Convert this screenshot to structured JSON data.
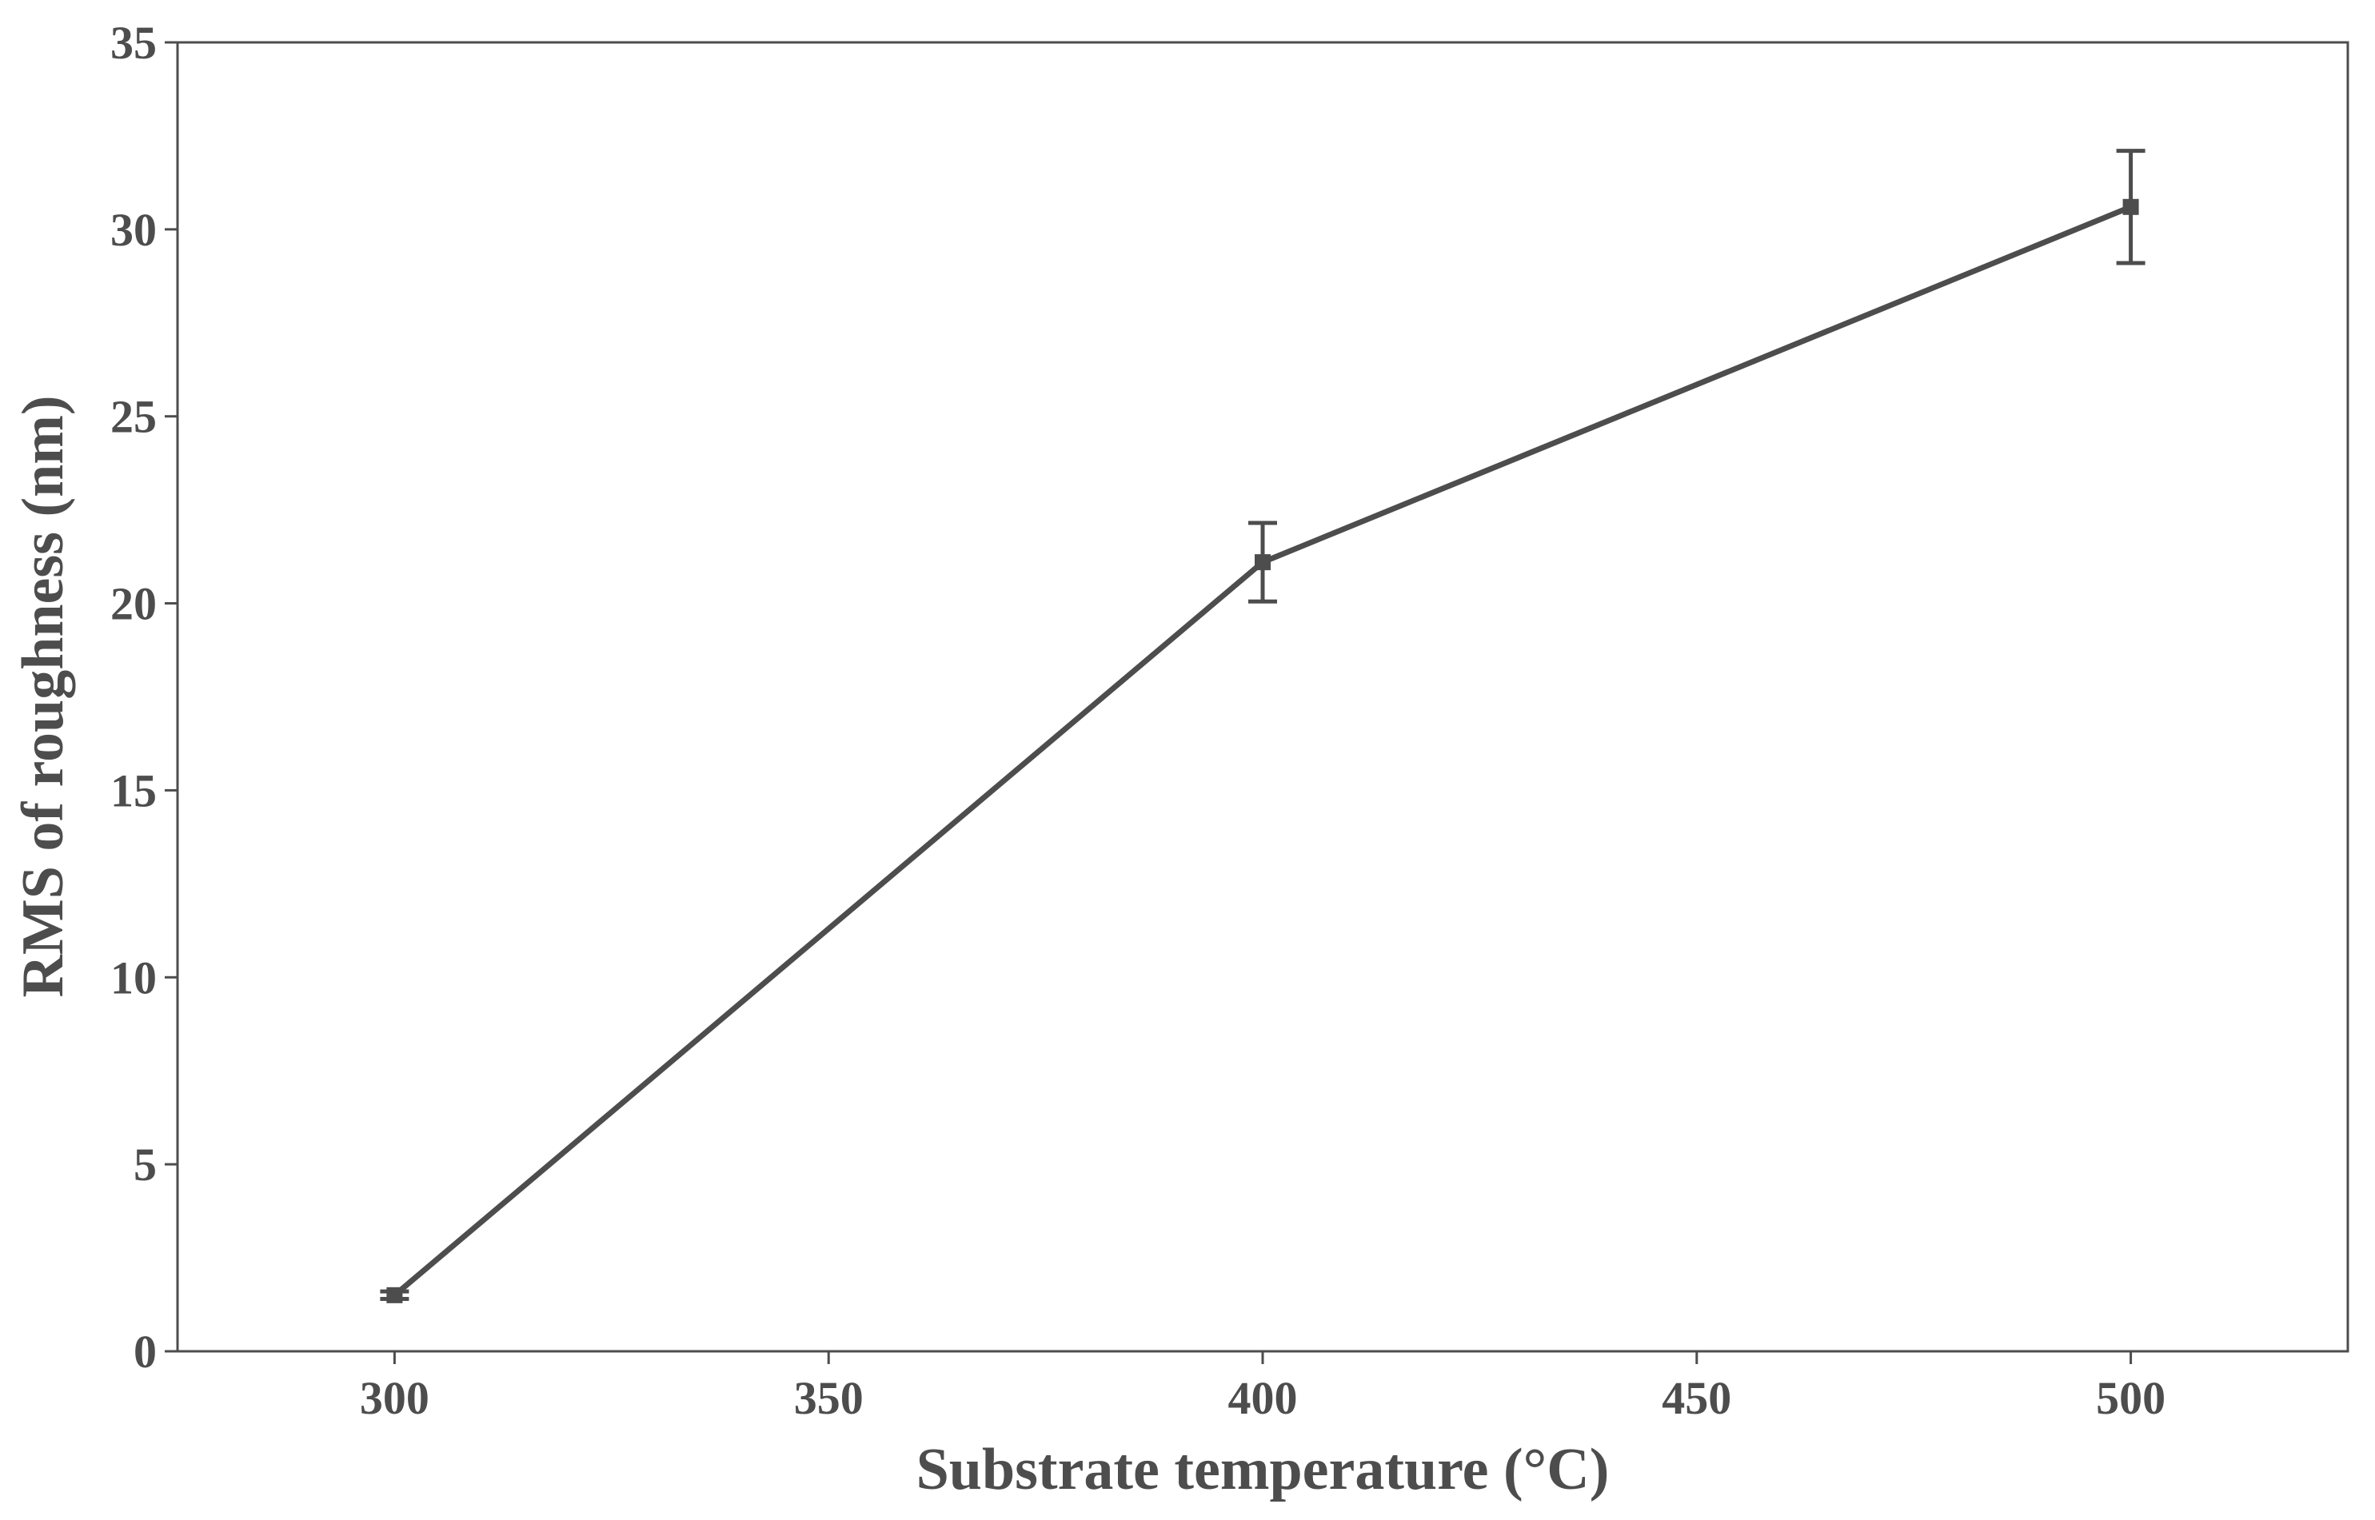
{
  "chart_data": {
    "type": "line",
    "x_label": "Substrate temperature (°C)",
    "y_label": "RMS of roughness (nm)",
    "x": [
      300,
      400,
      500
    ],
    "series": [
      {
        "color": "#4d4d4d",
        "values": [
          1.5,
          21.1,
          30.6
        ],
        "errors": [
          0.1,
          1.05,
          1.5
        ]
      }
    ],
    "xlim": [
      275,
      525
    ],
    "xticks": [
      300,
      350,
      400,
      450,
      500
    ],
    "ylim": [
      0,
      35
    ],
    "yticks": [
      0,
      5,
      10,
      15,
      20,
      25,
      30,
      35
    ]
  }
}
